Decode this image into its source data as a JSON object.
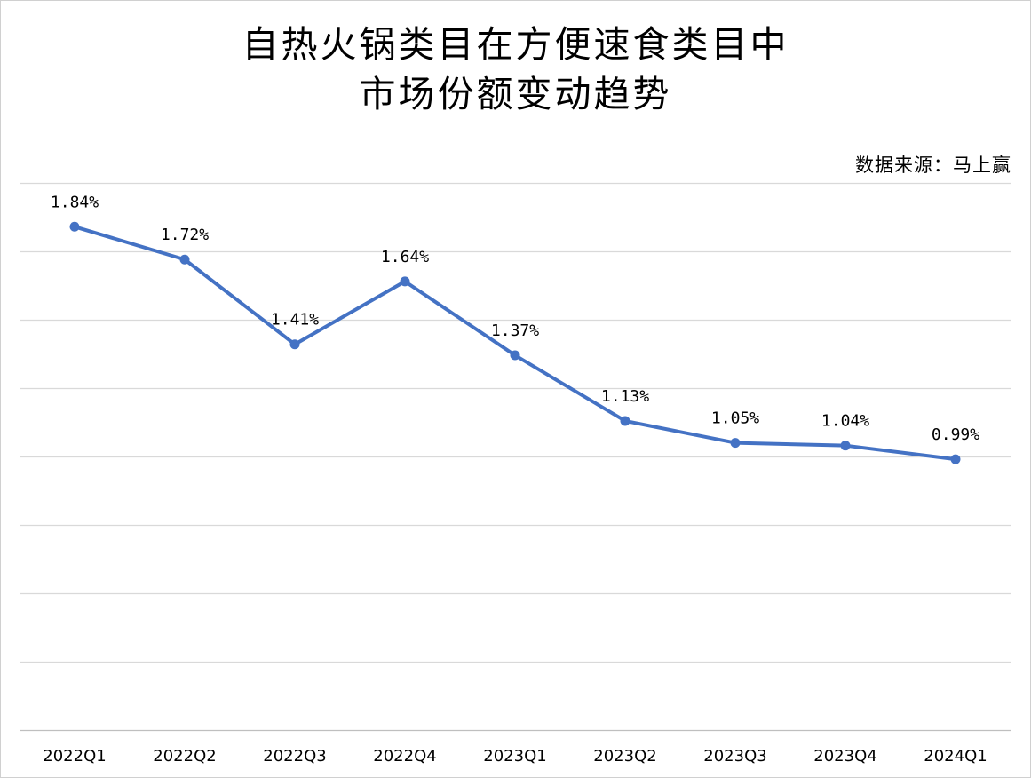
{
  "title_line1": "自热火锅类目在方便速食类目中",
  "title_line2": "市场份额变动趋势",
  "source": "数据来源：马上赢",
  "chart_data": {
    "type": "line",
    "title": "自热火锅类目在方便速食类目中市场份额变动趋势",
    "categories": [
      "2022Q1",
      "2022Q2",
      "2022Q3",
      "2022Q4",
      "2023Q1",
      "2023Q2",
      "2023Q3",
      "2023Q4",
      "2024Q1"
    ],
    "series": [
      {
        "values": [
          1.84,
          1.72,
          1.41,
          1.64,
          1.37,
          1.13,
          1.05,
          1.04,
          0.99
        ],
        "labels": [
          "1.84%",
          "1.72%",
          "1.41%",
          "1.64%",
          "1.37%",
          "1.13%",
          "1.05%",
          "1.04%",
          "0.99%"
        ],
        "color": "#4472C4"
      }
    ],
    "ylim": [
      0,
      2.0
    ],
    "ystep": 0.25,
    "grid": true,
    "xlabel": "",
    "ylabel": ""
  }
}
